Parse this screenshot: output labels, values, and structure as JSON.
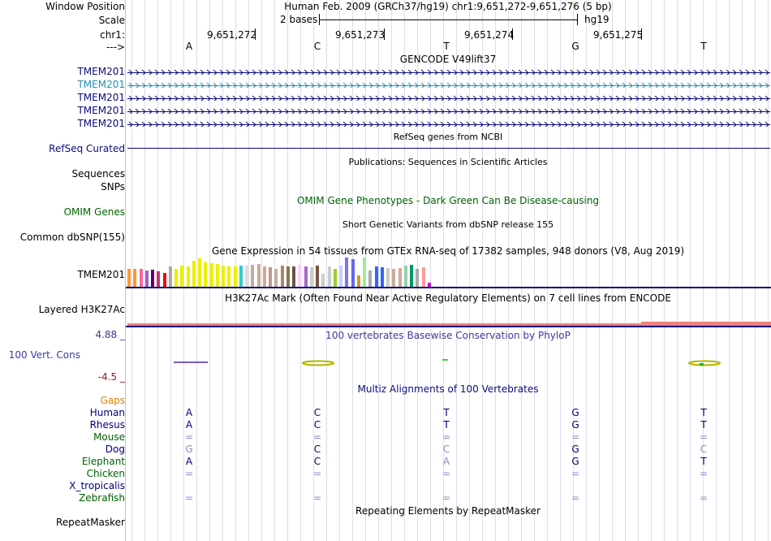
{
  "header": {
    "window_position_label": "Window Position",
    "window_position_value": "Human Feb. 2009 (GRCh37/hg19)   chr1:9,651,272-9,651,276 (5 bp)",
    "scale_label": "Scale",
    "scale_value": "2 bases",
    "scale_assembly": "hg19",
    "chrom_label": "chr1:",
    "strand_label": "--->",
    "positions": [
      "9,651,272",
      "9,651,273",
      "9,651,274",
      "9,651,275"
    ],
    "bases": [
      "A",
      "C",
      "T",
      "G",
      "T"
    ]
  },
  "gencode": {
    "title": "GENCODE V49lift37",
    "genes": [
      "TMEM201",
      "TMEM201",
      "TMEM201",
      "TMEM201",
      "TMEM201"
    ]
  },
  "refseq": {
    "title": "RefSeq genes from NCBI",
    "label": "RefSeq Curated"
  },
  "publications": {
    "title": "Publications: Sequences in Scientific Articles",
    "label_sequences": "Sequences",
    "label_snps": "SNPs"
  },
  "omim": {
    "title": "OMIM Gene Phenotypes - Dark Green Can Be Disease-causing",
    "label": "OMIM Genes"
  },
  "dbsnp": {
    "title": "Short Genetic Variants from dbSNP release 155",
    "label": "Common dbSNP(155)"
  },
  "gtex": {
    "title": "Gene Expression in 54 tissues from GTEx RNA-seq of 17382 samples, 948 donors (V8, Aug 2019)",
    "label": "TMEM201",
    "bars": [
      {
        "v": 0.6,
        "c": "#ff9933"
      },
      {
        "v": 0.6,
        "c": "#ff9933"
      },
      {
        "v": 0.62,
        "c": "#ff6699"
      },
      {
        "v": 0.55,
        "c": "#9966cc"
      },
      {
        "v": 0.58,
        "c": "#660066"
      },
      {
        "v": 0.52,
        "c": "#cc3366"
      },
      {
        "v": 0.48,
        "c": "#ff0000"
      },
      {
        "v": 0.7,
        "c": "#aaaaaa"
      },
      {
        "v": 0.6,
        "c": "#eeee00"
      },
      {
        "v": 0.72,
        "c": "#eeee00"
      },
      {
        "v": 0.7,
        "c": "#eeee00"
      },
      {
        "v": 0.88,
        "c": "#eeee00"
      },
      {
        "v": 0.97,
        "c": "#eeee00"
      },
      {
        "v": 0.82,
        "c": "#eeee00"
      },
      {
        "v": 0.8,
        "c": "#eeee00"
      },
      {
        "v": 0.78,
        "c": "#eeee00"
      },
      {
        "v": 0.72,
        "c": "#eeee00"
      },
      {
        "v": 0.7,
        "c": "#eeee00"
      },
      {
        "v": 0.7,
        "c": "#eeee00"
      },
      {
        "v": 0.72,
        "c": "#33cccc"
      },
      {
        "v": 0.73,
        "c": "#dddddd"
      },
      {
        "v": 0.75,
        "c": "#ccaa99"
      },
      {
        "v": 0.78,
        "c": "#ccaa99"
      },
      {
        "v": 0.7,
        "c": "#ccaa99"
      },
      {
        "v": 0.68,
        "c": "#bb9988"
      },
      {
        "v": 0.62,
        "c": "#ccaa99"
      },
      {
        "v": 0.72,
        "c": "#aa8866"
      },
      {
        "v": 0.7,
        "c": "#887755"
      },
      {
        "v": 0.7,
        "c": "#665544"
      },
      {
        "v": 0.75,
        "c": "#ffccff"
      },
      {
        "v": 0.7,
        "c": "#aa66cc"
      },
      {
        "v": 0.68,
        "c": "#cccccc"
      },
      {
        "v": 0.72,
        "c": "#775544"
      },
      {
        "v": 0.45,
        "c": "#cccccc"
      },
      {
        "v": 0.7,
        "c": "#cccccc"
      },
      {
        "v": 0.6,
        "c": "#99cc33"
      },
      {
        "v": 0.72,
        "c": "#ccccff"
      },
      {
        "v": 1.0,
        "c": "#7777ee"
      },
      {
        "v": 0.95,
        "c": "#6666ee"
      },
      {
        "v": 0.4,
        "c": "#cc9933"
      },
      {
        "v": 1.0,
        "c": "#99ee99"
      },
      {
        "v": 0.55,
        "c": "#aaaaaa"
      },
      {
        "v": 0.7,
        "c": "#3366ff"
      },
      {
        "v": 0.68,
        "c": "#3366ee"
      },
      {
        "v": 0.65,
        "c": "#cccccc"
      },
      {
        "v": 0.62,
        "c": "#ccaa99"
      },
      {
        "v": 0.65,
        "c": "#ccaa99"
      },
      {
        "v": 0.72,
        "c": "#99ccaa"
      },
      {
        "v": 0.75,
        "c": "#009966"
      },
      {
        "v": 0.62,
        "c": "#aaaaaa"
      },
      {
        "v": 0.68,
        "c": "#ff9999"
      },
      {
        "v": 0.15,
        "c": "#cc00cc"
      }
    ]
  },
  "h3k27ac": {
    "title": "H3K27Ac Mark (Often Found Near Active Regulatory Elements) on 7 cell lines from ENCODE",
    "label": "Layered H3K27Ac"
  },
  "phylop": {
    "title": "100 vertebrates Basewise Conservation by PhyloP",
    "label": "100 Vert. Cons",
    "max_label": "4.88 _",
    "min_label": "-4.5 _"
  },
  "multiz": {
    "title": "Multiz Alignments of 100 Vertebrates",
    "gaps_label": "Gaps",
    "species": [
      {
        "name": "Human",
        "color": "#000080",
        "bases": [
          "A",
          "C",
          "T",
          "G",
          "T"
        ],
        "tone": [
          "d",
          "d",
          "d",
          "d",
          "d"
        ]
      },
      {
        "name": "Rhesus",
        "color": "#000080",
        "bases": [
          "A",
          "C",
          "T",
          "G",
          "T"
        ],
        "tone": [
          "d",
          "d",
          "d",
          "d",
          "d"
        ]
      },
      {
        "name": "Mouse",
        "color": "#006400",
        "bases": [
          "=",
          "=",
          "=",
          "=",
          "="
        ],
        "tone": [
          "l",
          "l",
          "l",
          "l",
          "l"
        ]
      },
      {
        "name": "Dog",
        "color": "#000080",
        "bases": [
          "G",
          "C",
          "C",
          "G",
          "C"
        ],
        "tone": [
          "l",
          "d",
          "l",
          "d",
          "l"
        ]
      },
      {
        "name": "Elephant",
        "color": "#006400",
        "bases": [
          "A",
          "C",
          "A",
          "G",
          "T"
        ],
        "tone": [
          "d",
          "d",
          "l",
          "d",
          "d"
        ]
      },
      {
        "name": "Chicken",
        "color": "#006400",
        "bases": [
          "=",
          "=",
          "=",
          "=",
          "="
        ],
        "tone": [
          "l",
          "l",
          "l",
          "l",
          "l"
        ]
      },
      {
        "name": "X_tropicalis",
        "color": "#000080",
        "bases": [
          "",
          "",
          "",
          "",
          ""
        ],
        "tone": [
          "l",
          "l",
          "l",
          "l",
          "l"
        ]
      },
      {
        "name": "Zebrafish",
        "color": "#006400",
        "bases": [
          "=",
          "=",
          "=",
          "=",
          "="
        ],
        "tone": [
          "l",
          "l",
          "l",
          "l",
          "l"
        ]
      }
    ]
  },
  "repeatmasker": {
    "title": "Repeating Elements by RepeatMasker",
    "label": "RepeatMasker"
  }
}
